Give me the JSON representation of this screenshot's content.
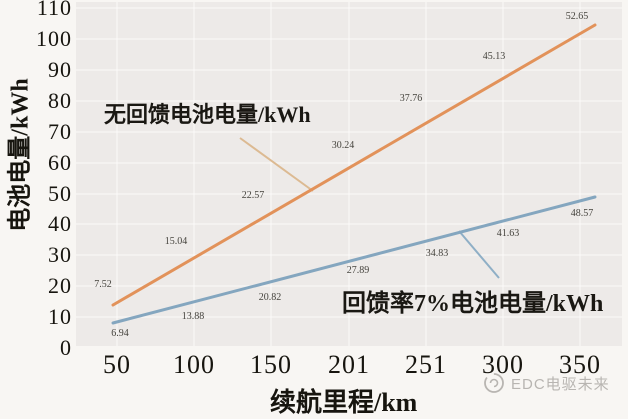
{
  "y_axis": {
    "label": "电池电量/kWh",
    "ticks": [
      "110",
      "100",
      "90",
      "80",
      "70",
      "60",
      "50",
      "40",
      "30",
      "20",
      "10",
      "0"
    ]
  },
  "x_axis": {
    "label": "续航里程/km",
    "ticks": [
      "50",
      "100",
      "150",
      "201",
      "251",
      "300",
      "350"
    ]
  },
  "annotations": {
    "no_regen_label": "无回馈电池电量/kWh",
    "regen_label": "回馈率7%电池电量/kWh"
  },
  "watermark": {
    "logo_icon": "circle-swirl-logo-icon",
    "text": "EDC电驱未来"
  },
  "colors": {
    "orange_line": "#e2925a",
    "blue_line": "#84a6bf",
    "leader_orange": "#dcba92",
    "leader_blue": "#8fafc6",
    "plot_bg": "#edeae8",
    "grid": "rgba(255,255,255,0.7)",
    "watermark": "#b8b5b1"
  },
  "chart_data": {
    "type": "line",
    "x": [
      50,
      100,
      150,
      201,
      251,
      300,
      350
    ],
    "series": [
      {
        "name": "无回馈电池电量/kWh",
        "color": "#e2925a",
        "values": [
          7.52,
          15.04,
          22.57,
          30.24,
          37.76,
          45.13,
          52.65
        ]
      },
      {
        "name": "回馈率7%电池电量/kWh",
        "color": "#84a6bf",
        "values": [
          6.94,
          13.88,
          20.82,
          27.89,
          34.83,
          41.63,
          48.57
        ]
      }
    ],
    "xlabel": "续航里程/km",
    "ylabel": "电池电量/kWh",
    "ylim": [
      0,
      110
    ],
    "xticks": [
      "50",
      "100",
      "150",
      "201",
      "251",
      "300",
      "350"
    ],
    "yticks": [
      0,
      10,
      20,
      30,
      40,
      50,
      60,
      70,
      80,
      90,
      100,
      110
    ],
    "grid": true,
    "legend": "inline annotations with leader lines"
  }
}
